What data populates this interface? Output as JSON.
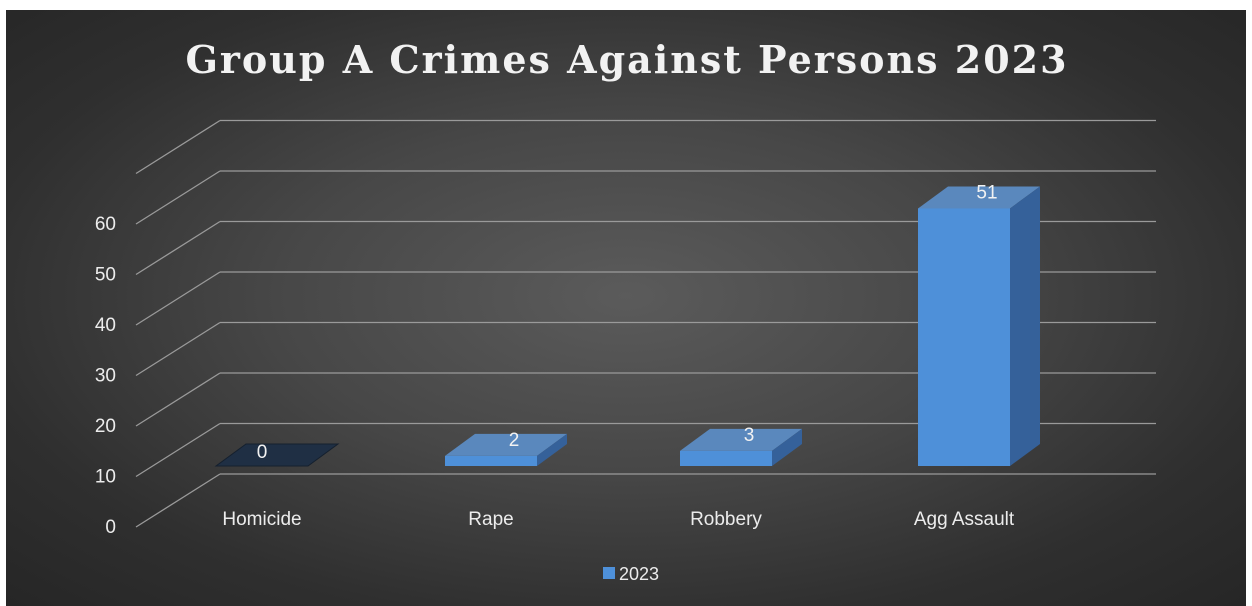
{
  "chart_data": {
    "type": "bar",
    "title": "Group A Crimes Against Persons 2023",
    "categories": [
      "Homicide",
      "Rape",
      "Robbery",
      "Agg Assault"
    ],
    "series": [
      {
        "name": "2023",
        "values": [
          0,
          2,
          3,
          51
        ]
      }
    ],
    "data_labels": [
      "0",
      "2",
      "3",
      "51"
    ],
    "y_ticks": [
      "0",
      "10",
      "20",
      "30",
      "40",
      "50",
      "60"
    ],
    "ylim": [
      0,
      60
    ],
    "grid": true,
    "legend": "bottom",
    "style": "3d-column"
  },
  "colors": {
    "background": "#3c3c3c",
    "bar_front": "#4e90d9",
    "bar_top": "#5a88bd",
    "bar_side": "#35619a",
    "zero_bar": "#1f2f44",
    "gridline": "#9a9a9a",
    "text": "#ececec"
  }
}
